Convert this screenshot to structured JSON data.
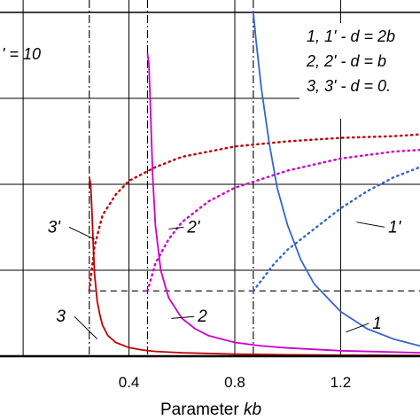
{
  "chart_data": {
    "type": "line",
    "xlabel_prefix": "Parameter ",
    "xlabel_var": "kb",
    "xlim": [
      -0.0875,
      1.5
    ],
    "ylim": [
      0,
      1
    ],
    "x_ticks": [
      {
        "value": 0.4,
        "label": "0.4"
      },
      {
        "value": 0.8,
        "label": "0.8"
      },
      {
        "value": 1.2,
        "label": "1.2"
      }
    ],
    "x_grid": [
      0.0,
      0.4,
      0.8,
      1.2
    ],
    "y_grid": [
      0.25,
      0.5,
      0.75,
      1.0
    ],
    "grid": true,
    "param_note": "' = 10",
    "legend": {
      "placement": "top-right",
      "entries": [
        "1, 1' - d = 2b",
        "2, 2' - d = b",
        "3, 3' - d = 0."
      ]
    },
    "baseline_y": 0.19,
    "series": [
      {
        "name": "3",
        "style": "solid",
        "color": "#c00000",
        "x": [
          0.25,
          0.255,
          0.26,
          0.265,
          0.27,
          0.28,
          0.29,
          0.3,
          0.32,
          0.35,
          0.4,
          0.45,
          0.5,
          0.6,
          0.8,
          1.0,
          1.2,
          1.5
        ],
        "y": [
          0.52,
          0.5,
          0.42,
          0.32,
          0.24,
          0.16,
          0.12,
          0.09,
          0.06,
          0.04,
          0.025,
          0.018,
          0.014,
          0.01,
          0.006,
          0.004,
          0.003,
          0.002
        ]
      },
      {
        "name": "3'",
        "style": "dotted",
        "color": "#c00000",
        "x": [
          0.25,
          0.27,
          0.3,
          0.35,
          0.4,
          0.5,
          0.6,
          0.8,
          1.0,
          1.2,
          1.4,
          1.5
        ],
        "y": [
          0.19,
          0.32,
          0.41,
          0.47,
          0.51,
          0.55,
          0.58,
          0.61,
          0.625,
          0.635,
          0.64,
          0.645
        ]
      },
      {
        "name": "2",
        "style": "solid",
        "color": "#cc00cc",
        "x": [
          0.47,
          0.475,
          0.48,
          0.49,
          0.5,
          0.52,
          0.55,
          0.6,
          0.65,
          0.7,
          0.8,
          0.9,
          1.0,
          1.2,
          1.5
        ],
        "y": [
          0.88,
          0.85,
          0.75,
          0.52,
          0.38,
          0.25,
          0.17,
          0.11,
          0.08,
          0.06,
          0.04,
          0.03,
          0.024,
          0.016,
          0.01
        ]
      },
      {
        "name": "2'",
        "style": "dotted",
        "color": "#cc00cc",
        "x": [
          0.47,
          0.5,
          0.55,
          0.6,
          0.7,
          0.8,
          1.0,
          1.2,
          1.4,
          1.5
        ],
        "y": [
          0.19,
          0.27,
          0.34,
          0.39,
          0.45,
          0.49,
          0.54,
          0.575,
          0.595,
          0.6
        ]
      },
      {
        "name": "1",
        "style": "solid",
        "color": "#3366cc",
        "x": [
          0.87,
          0.88,
          0.9,
          0.93,
          0.96,
          1.0,
          1.05,
          1.1,
          1.2,
          1.3,
          1.4,
          1.5
        ],
        "y": [
          1.0,
          0.92,
          0.78,
          0.62,
          0.49,
          0.38,
          0.28,
          0.21,
          0.13,
          0.08,
          0.05,
          0.03
        ]
      },
      {
        "name": "1'",
        "style": "dotted",
        "color": "#3366cc",
        "x": [
          0.87,
          0.9,
          0.95,
          1.0,
          1.05,
          1.1,
          1.15,
          1.2,
          1.3,
          1.4,
          1.5
        ],
        "y": [
          0.19,
          0.22,
          0.27,
          0.31,
          0.34,
          0.37,
          0.4,
          0.43,
          0.48,
          0.52,
          0.55
        ]
      }
    ],
    "thresholds": [
      0.25,
      0.47,
      0.87
    ],
    "annotations": [
      {
        "text": "3",
        "x": 0.16,
        "y": 0.1,
        "ax": 0.28,
        "ay": 0.05
      },
      {
        "text": "3'",
        "x": 0.14,
        "y": 0.36,
        "ax": 0.27,
        "ay": 0.34
      },
      {
        "text": "2",
        "x": 0.66,
        "y": 0.1,
        "ax": 0.56,
        "ay": 0.11
      },
      {
        "text": "2'",
        "x": 0.62,
        "y": 0.36,
        "ax": 0.55,
        "ay": 0.37
      },
      {
        "text": "1",
        "x": 1.32,
        "y": 0.08,
        "ax": 1.22,
        "ay": 0.07
      },
      {
        "text": "1'",
        "x": 1.38,
        "y": 0.36,
        "ax": 1.26,
        "ay": 0.39
      }
    ]
  }
}
